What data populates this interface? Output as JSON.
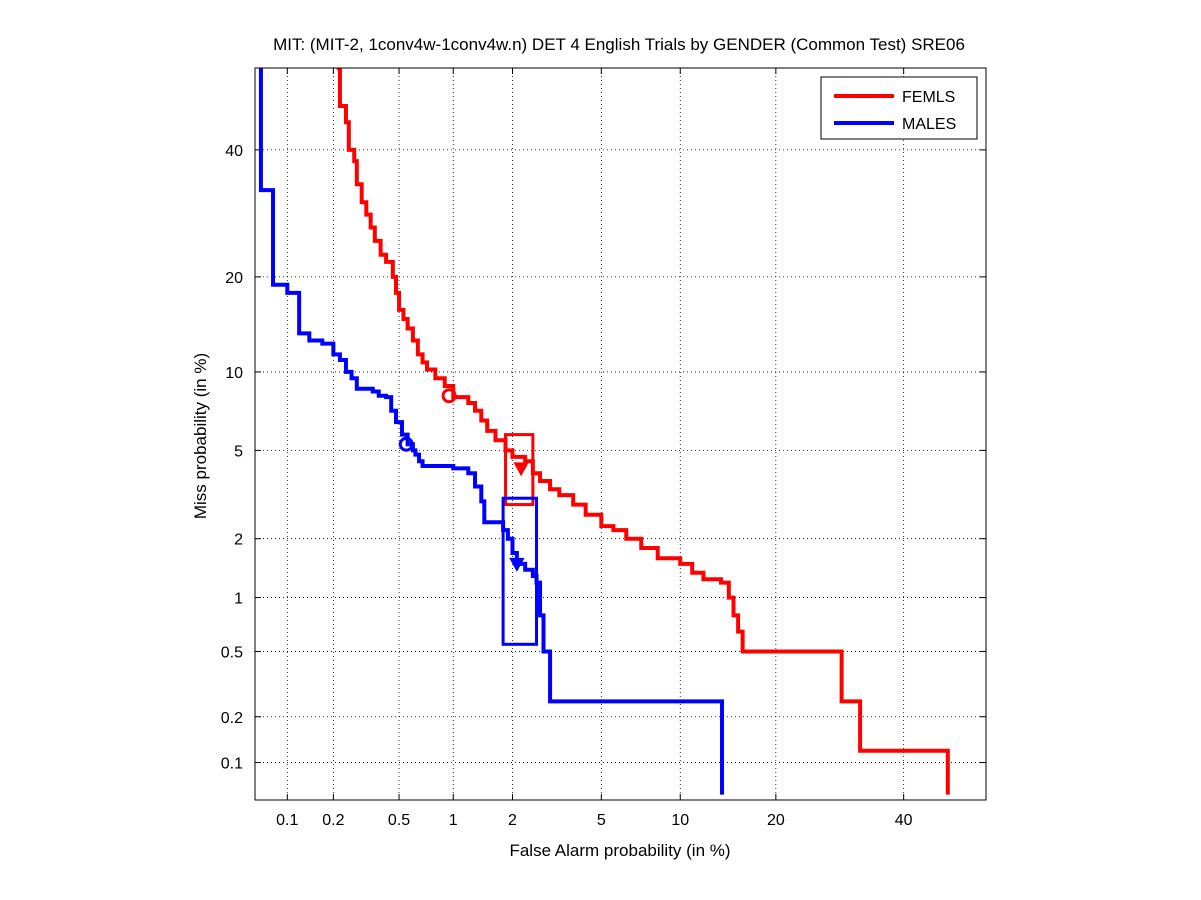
{
  "chart_data": {
    "type": "line",
    "title": "MIT: (MIT-2, 1conv4w-1conv4w.n) DET 4 English Trials by GENDER (Common Test) SRE06",
    "xlabel": "False Alarm probability (in %)",
    "ylabel": "Miss probability (in %)",
    "scale": "normal-deviate (DET)",
    "xlim": [
      0.06,
      55
    ],
    "ylim": [
      0.055,
      55
    ],
    "grid": true,
    "legend_position": "top-right",
    "x_ticks": [
      0.1,
      0.2,
      0.5,
      1,
      2,
      5,
      10,
      20,
      40
    ],
    "x_tick_labels": [
      "0.1",
      "0.2",
      "0.5",
      "1",
      "2",
      "5",
      "10",
      "20",
      "40"
    ],
    "y_ticks": [
      0.1,
      0.2,
      0.5,
      1,
      2,
      5,
      10,
      20,
      40
    ],
    "y_tick_labels": [
      "0.1",
      "0.2",
      "0.5",
      "1",
      "2",
      "5",
      "10",
      "20",
      "40"
    ],
    "series": [
      {
        "name": "FEMLS",
        "color": "#ff0000",
        "points": [
          [
            0.21,
            55
          ],
          [
            0.22,
            48
          ],
          [
            0.24,
            45
          ],
          [
            0.25,
            40
          ],
          [
            0.27,
            38
          ],
          [
            0.28,
            34
          ],
          [
            0.3,
            31
          ],
          [
            0.32,
            29
          ],
          [
            0.34,
            27
          ],
          [
            0.36,
            25
          ],
          [
            0.39,
            23
          ],
          [
            0.42,
            22
          ],
          [
            0.46,
            20
          ],
          [
            0.48,
            18
          ],
          [
            0.5,
            16
          ],
          [
            0.53,
            15
          ],
          [
            0.56,
            14
          ],
          [
            0.6,
            12.8
          ],
          [
            0.64,
            11.5
          ],
          [
            0.68,
            10.8
          ],
          [
            0.72,
            10.2
          ],
          [
            0.8,
            9.5
          ],
          [
            0.9,
            8.9
          ],
          [
            1.0,
            8.1
          ],
          [
            1.2,
            7.7
          ],
          [
            1.3,
            7.2
          ],
          [
            1.4,
            6.6
          ],
          [
            1.5,
            6.0
          ],
          [
            1.65,
            5.5
          ],
          [
            1.85,
            5.0
          ],
          [
            2.0,
            4.7
          ],
          [
            2.3,
            4.5
          ],
          [
            2.5,
            4.0
          ],
          [
            2.7,
            3.7
          ],
          [
            3.0,
            3.4
          ],
          [
            3.3,
            3.2
          ],
          [
            3.8,
            2.9
          ],
          [
            4.3,
            2.6
          ],
          [
            5.0,
            2.3
          ],
          [
            5.6,
            2.2
          ],
          [
            6.3,
            2.0
          ],
          [
            7.2,
            1.8
          ],
          [
            8.3,
            1.6
          ],
          [
            10.0,
            1.5
          ],
          [
            11.0,
            1.35
          ],
          [
            12.0,
            1.25
          ],
          [
            13.7,
            1.2
          ],
          [
            14.5,
            1.0
          ],
          [
            15.0,
            0.8
          ],
          [
            15.5,
            0.65
          ],
          [
            16.0,
            0.5
          ],
          [
            29.0,
            0.5
          ],
          [
            29.5,
            0.25
          ],
          [
            32.0,
            0.25
          ],
          [
            32.5,
            0.12
          ],
          [
            48.0,
            0.12
          ],
          [
            48.0,
            0.06
          ]
        ],
        "min_dcf_marker": {
          "x": 0.95,
          "y": 8.2,
          "shape": "circle"
        },
        "act_dcf_marker": {
          "x": 2.2,
          "y": 4.2,
          "shape": "down-triangle"
        },
        "confidence_box": {
          "x": [
            1.85,
            2.5
          ],
          "y": [
            2.9,
            5.8
          ]
        }
      },
      {
        "name": "MALES",
        "color": "#0000ff",
        "points": [
          [
            0.065,
            55
          ],
          [
            0.066,
            33
          ],
          [
            0.08,
            33
          ],
          [
            0.08,
            19
          ],
          [
            0.1,
            19
          ],
          [
            0.1,
            18
          ],
          [
            0.12,
            18
          ],
          [
            0.12,
            13.5
          ],
          [
            0.14,
            12.8
          ],
          [
            0.17,
            12.5
          ],
          [
            0.2,
            11.5
          ],
          [
            0.22,
            11
          ],
          [
            0.24,
            10
          ],
          [
            0.26,
            9.5
          ],
          [
            0.28,
            8.7
          ],
          [
            0.35,
            8.5
          ],
          [
            0.38,
            8.2
          ],
          [
            0.42,
            8.1
          ],
          [
            0.45,
            7.2
          ],
          [
            0.48,
            6.5
          ],
          [
            0.52,
            5.8
          ],
          [
            0.56,
            5.3
          ],
          [
            0.6,
            5.0
          ],
          [
            0.62,
            4.8
          ],
          [
            0.65,
            4.5
          ],
          [
            0.68,
            4.3
          ],
          [
            0.9,
            4.3
          ],
          [
            1.0,
            4.2
          ],
          [
            1.2,
            4.0
          ],
          [
            1.3,
            3.5
          ],
          [
            1.4,
            3.0
          ],
          [
            1.45,
            2.4
          ],
          [
            1.7,
            2.4
          ],
          [
            1.8,
            2.2
          ],
          [
            1.9,
            2.0
          ],
          [
            2.0,
            1.7
          ],
          [
            2.1,
            1.5
          ],
          [
            2.3,
            1.4
          ],
          [
            2.5,
            1.3
          ],
          [
            2.6,
            1.2
          ],
          [
            2.7,
            0.8
          ],
          [
            2.8,
            0.5
          ],
          [
            3.0,
            0.5
          ],
          [
            3.0,
            0.25
          ],
          [
            13.8,
            0.25
          ],
          [
            13.8,
            0.06
          ]
        ],
        "min_dcf_marker": {
          "x": 0.55,
          "y": 5.3,
          "shape": "circle"
        },
        "act_dcf_marker": {
          "x": 2.1,
          "y": 1.5,
          "shape": "down-triangle"
        },
        "confidence_box": {
          "x": [
            1.8,
            2.6
          ],
          "y": [
            0.55,
            3.1
          ]
        }
      }
    ]
  }
}
